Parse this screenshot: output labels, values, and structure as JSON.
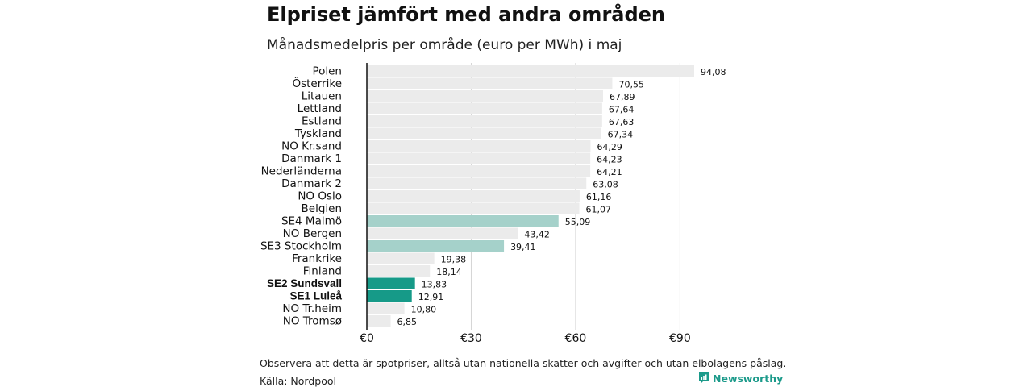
{
  "title": "Elpriset jämfört med andra områden",
  "subtitle": "Månadsmedelpris per område (euro per MWh) i maj",
  "note": "Observera att detta är spotpriser, alltså utan nationella skatter och avgifter och utan elbolagens påslag.",
  "source": "Källa: Nordpool",
  "brand": "Newsworthy",
  "colors": {
    "default_bar": "#ebebeb",
    "highlight_light": "#a5d1ca",
    "highlight_dark": "#169a88",
    "grid": "#d4d4d4",
    "axis": "#111111",
    "brand": "#1b9a8a"
  },
  "chart_data": {
    "type": "bar",
    "orientation": "horizontal",
    "title": "Elpriset jämfört med andra områden",
    "subtitle": "Månadsmedelpris per område (euro per MWh) i maj",
    "xlim": [
      0,
      94.08
    ],
    "xticks": [
      0,
      30,
      60,
      90
    ],
    "xtick_labels": [
      "€0",
      "€30",
      "€60",
      "€90"
    ],
    "grid": true,
    "categories": [
      "Polen",
      "Österrike",
      "Litauen",
      "Lettland",
      "Estland",
      "Tyskland",
      "NO Kr.sand",
      "Danmark  1",
      "Nederländerna",
      "Danmark  2",
      "NO Oslo",
      "Belgien",
      "SE4  Malmö",
      "NO Bergen",
      "SE3  Stockholm",
      "Frankrike",
      "Finland",
      "SE2 Sundsvall",
      "SE1 Luleå",
      "NO Tr.heim",
      "NO Tromsø"
    ],
    "values": [
      94.08,
      70.55,
      67.89,
      67.64,
      67.63,
      67.34,
      64.29,
      64.23,
      64.21,
      63.08,
      61.16,
      61.07,
      55.09,
      43.42,
      39.41,
      19.38,
      18.14,
      13.83,
      12.91,
      10.8,
      6.85
    ],
    "value_labels": [
      "94,08",
      "70,55",
      "67,89",
      "67,64",
      "67,63",
      "67,34",
      "64,29",
      "64,23",
      "64,21",
      "63,08",
      "61,16",
      "61,07",
      "55,09",
      "43,42",
      "39,41",
      "19,38",
      "18,14",
      "13,83",
      "12,91",
      "10,80",
      "6,85"
    ],
    "highlight": [
      "none",
      "none",
      "none",
      "none",
      "none",
      "none",
      "none",
      "none",
      "none",
      "none",
      "none",
      "none",
      "light",
      "none",
      "light",
      "none",
      "none",
      "dark",
      "dark",
      "none",
      "none"
    ],
    "bold_labels": [
      false,
      false,
      false,
      false,
      false,
      false,
      false,
      false,
      false,
      false,
      false,
      false,
      false,
      false,
      false,
      false,
      false,
      true,
      true,
      false,
      false
    ]
  }
}
